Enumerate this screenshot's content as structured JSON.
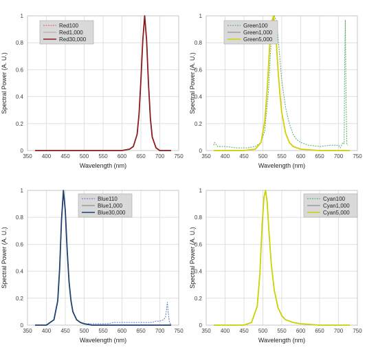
{
  "chart_data": [
    {
      "type": "line",
      "xlabel": "Wavelength (nm)",
      "ylabel": "Spectral Power (A. U.)",
      "xlim": [
        350,
        750
      ],
      "ylim": [
        0,
        1
      ],
      "x_ticks": [
        "350",
        "400",
        "450",
        "500",
        "550",
        "600",
        "650",
        "700",
        "750"
      ],
      "y_ticks": [
        "0",
        "0.2",
        "0.4",
        "0.6",
        "0.8",
        "1"
      ],
      "grid": true,
      "legend_position": "top-left",
      "series": [
        {
          "name": "Red100",
          "color": "#e05555",
          "style": "dotted",
          "x": [
            370,
            400,
            500,
            550,
            600,
            620,
            630,
            640,
            645,
            650,
            655,
            660,
            665,
            670,
            675,
            680,
            690,
            700,
            730
          ],
          "y": [
            0,
            0,
            0,
            0,
            0,
            0.01,
            0.03,
            0.12,
            0.27,
            0.52,
            0.82,
            1.0,
            0.82,
            0.5,
            0.24,
            0.1,
            0.02,
            0,
            0
          ]
        },
        {
          "name": "Red1,000",
          "color": "#b8b8b8",
          "style": "solid",
          "x": [
            370,
            400,
            500,
            550,
            600,
            620,
            630,
            640,
            645,
            650,
            655,
            660,
            665,
            670,
            675,
            680,
            690,
            700,
            730
          ],
          "y": [
            0,
            0,
            0,
            0,
            0,
            0.01,
            0.03,
            0.12,
            0.27,
            0.52,
            0.82,
            1.0,
            0.82,
            0.5,
            0.24,
            0.1,
            0.02,
            0,
            0
          ]
        },
        {
          "name": "Red30,000",
          "color": "#8b1a1a",
          "style": "solid",
          "x": [
            370,
            400,
            500,
            550,
            600,
            620,
            630,
            640,
            645,
            650,
            655,
            660,
            665,
            670,
            675,
            680,
            690,
            700,
            730
          ],
          "y": [
            0,
            0,
            0,
            0,
            0,
            0.01,
            0.03,
            0.12,
            0.27,
            0.52,
            0.82,
            1.0,
            0.82,
            0.5,
            0.24,
            0.1,
            0.02,
            0,
            0
          ]
        }
      ]
    },
    {
      "type": "line",
      "xlabel": "Wavelength (nm)",
      "ylabel": "Spectral Power (A. U.)",
      "xlim": [
        350,
        750
      ],
      "ylim": [
        0,
        1
      ],
      "x_ticks": [
        "350",
        "400",
        "450",
        "500",
        "550",
        "600",
        "650",
        "700",
        "750"
      ],
      "y_ticks": [
        "0",
        "0.2",
        "0.4",
        "0.6",
        "0.8",
        "1"
      ],
      "grid": true,
      "legend_position": "top-left",
      "series": [
        {
          "name": "Green100",
          "color": "#55a86a",
          "style": "dotted",
          "x": [
            370,
            372,
            380,
            400,
            430,
            460,
            480,
            495,
            505,
            515,
            520,
            525,
            530,
            535,
            540,
            545,
            550,
            560,
            570,
            580,
            590,
            600,
            620,
            650,
            680,
            700,
            705,
            710,
            712,
            715,
            716,
            718,
            720,
            722,
            725
          ],
          "y": [
            0.04,
            0.06,
            0.03,
            0.03,
            0.02,
            0.02,
            0.03,
            0.06,
            0.15,
            0.45,
            0.72,
            0.93,
            1.0,
            0.97,
            0.85,
            0.68,
            0.52,
            0.32,
            0.2,
            0.12,
            0.08,
            0.06,
            0.04,
            0.03,
            0.04,
            0.04,
            0.02,
            0.05,
            0.06,
            0.05,
            0.5,
            0.97,
            0.4,
            0.05,
            0.04
          ]
        },
        {
          "name": "Green1,000",
          "color": "#a0a0a0",
          "style": "solid",
          "x": [
            370,
            400,
            450,
            480,
            495,
            505,
            512,
            518,
            524,
            528,
            532,
            536,
            540,
            545,
            550,
            560,
            570,
            580,
            600,
            650,
            700,
            730
          ],
          "y": [
            0,
            0,
            0,
            0.01,
            0.06,
            0.22,
            0.48,
            0.78,
            0.96,
            1.0,
            0.93,
            0.78,
            0.6,
            0.42,
            0.28,
            0.13,
            0.06,
            0.03,
            0.01,
            0,
            0,
            0
          ]
        },
        {
          "name": "Green5,000",
          "color": "#d4d000",
          "style": "solid",
          "x": [
            370,
            400,
            450,
            480,
            495,
            505,
            512,
            518,
            524,
            528,
            532,
            536,
            540,
            545,
            550,
            560,
            570,
            580,
            600,
            650,
            700,
            730
          ],
          "y": [
            0,
            0,
            0,
            0.01,
            0.06,
            0.22,
            0.48,
            0.78,
            0.96,
            1.0,
            0.93,
            0.78,
            0.6,
            0.42,
            0.28,
            0.13,
            0.06,
            0.03,
            0.01,
            0,
            0,
            0
          ]
        }
      ]
    },
    {
      "type": "line",
      "xlabel": "Wavelength (nm)",
      "ylabel": "Spectral Power (A. U.)",
      "xlim": [
        350,
        750
      ],
      "ylim": [
        0,
        1
      ],
      "x_ticks": [
        "350",
        "400",
        "450",
        "500",
        "550",
        "600",
        "650",
        "700",
        "750"
      ],
      "y_ticks": [
        "0",
        "0.2",
        "0.4",
        "0.6",
        "0.8",
        "1"
      ],
      "grid": true,
      "legend_position": "top-right",
      "series": [
        {
          "name": "Blue110",
          "color": "#5577c0",
          "style": "dotted",
          "x": [
            370,
            400,
            420,
            430,
            435,
            440,
            445,
            450,
            455,
            460,
            465,
            470,
            480,
            490,
            500,
            520,
            540,
            560,
            580,
            600,
            620,
            640,
            660,
            680,
            690,
            700,
            710,
            715,
            718,
            720,
            722,
            725,
            728,
            730
          ],
          "y": [
            0,
            0,
            0.04,
            0.18,
            0.42,
            0.78,
            1.0,
            0.85,
            0.55,
            0.32,
            0.18,
            0.1,
            0.04,
            0.02,
            0.01,
            0.01,
            0.01,
            0.01,
            0.02,
            0.02,
            0.02,
            0.02,
            0.02,
            0.02,
            0.03,
            0.03,
            0.04,
            0.06,
            0.12,
            0.17,
            0.1,
            0.03,
            0.01,
            0
          ]
        },
        {
          "name": "Blue1,000",
          "color": "#9a9a9a",
          "style": "solid",
          "x": [
            370,
            400,
            420,
            430,
            435,
            440,
            445,
            450,
            455,
            460,
            465,
            470,
            480,
            490,
            500,
            520,
            560,
            600,
            650,
            700,
            730
          ],
          "y": [
            0,
            0,
            0.04,
            0.18,
            0.42,
            0.78,
            1.0,
            0.85,
            0.55,
            0.32,
            0.18,
            0.1,
            0.04,
            0.02,
            0.01,
            0,
            0,
            0,
            0,
            0,
            0
          ]
        },
        {
          "name": "Blue30,000",
          "color": "#1f3f70",
          "style": "solid",
          "x": [
            370,
            400,
            420,
            430,
            435,
            440,
            445,
            450,
            455,
            460,
            465,
            470,
            480,
            490,
            500,
            520,
            560,
            600,
            650,
            700,
            730
          ],
          "y": [
            0,
            0,
            0.04,
            0.18,
            0.42,
            0.78,
            1.0,
            0.85,
            0.55,
            0.32,
            0.18,
            0.1,
            0.04,
            0.02,
            0.01,
            0,
            0,
            0,
            0,
            0,
            0
          ]
        }
      ]
    },
    {
      "type": "line",
      "xlabel": "Wavelength (nm)",
      "ylabel": "Spectral Power (A. U.)",
      "xlim": [
        350,
        750
      ],
      "ylim": [
        0,
        1
      ],
      "x_ticks": [
        "350",
        "400",
        "450",
        "500",
        "550",
        "600",
        "650",
        "700",
        "750"
      ],
      "y_ticks": [
        "0",
        "0.2",
        "0.4",
        "0.6",
        "0.8",
        "1"
      ],
      "grid": true,
      "legend_position": "top-right",
      "series": [
        {
          "name": "Cyan100",
          "color": "#3aa860",
          "style": "dotted",
          "x": [
            370,
            420,
            450,
            470,
            485,
            492,
            498,
            503,
            507,
            511,
            516,
            522,
            530,
            540,
            550,
            560,
            580,
            600,
            650,
            730
          ],
          "y": [
            0,
            0,
            0,
            0.02,
            0.14,
            0.38,
            0.74,
            0.95,
            1.0,
            0.92,
            0.7,
            0.46,
            0.26,
            0.13,
            0.07,
            0.04,
            0.02,
            0.01,
            0,
            0
          ]
        },
        {
          "name": "Cyan1,000",
          "color": "#9a9a9a",
          "style": "solid",
          "x": [
            370,
            420,
            450,
            470,
            485,
            492,
            498,
            503,
            507,
            511,
            516,
            522,
            530,
            540,
            550,
            560,
            580,
            600,
            650,
            730
          ],
          "y": [
            0,
            0,
            0,
            0.02,
            0.14,
            0.38,
            0.74,
            0.95,
            1.0,
            0.92,
            0.7,
            0.46,
            0.26,
            0.13,
            0.07,
            0.04,
            0.02,
            0.01,
            0,
            0
          ]
        },
        {
          "name": "Cyan5,000",
          "color": "#c8d400",
          "style": "solid",
          "x": [
            370,
            420,
            450,
            470,
            485,
            492,
            498,
            503,
            507,
            511,
            516,
            522,
            530,
            540,
            550,
            560,
            580,
            600,
            650,
            730
          ],
          "y": [
            0,
            0,
            0,
            0.02,
            0.14,
            0.38,
            0.74,
            0.95,
            1.0,
            0.92,
            0.7,
            0.46,
            0.26,
            0.13,
            0.07,
            0.04,
            0.02,
            0.01,
            0,
            0
          ]
        }
      ]
    }
  ]
}
